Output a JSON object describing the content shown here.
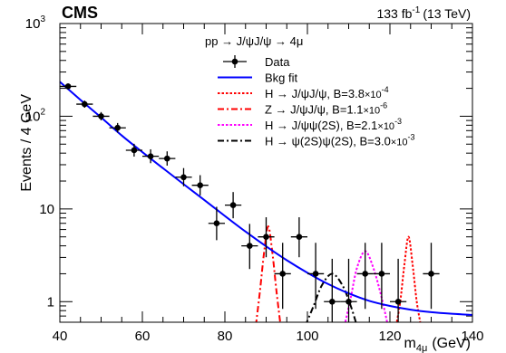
{
  "header": {
    "experiment": "CMS",
    "lumi": "133 fb",
    "lumi_exp": "-1",
    "energy": "(13 TeV)"
  },
  "chart_data": {
    "type": "line",
    "xlabel": "m",
    "xlabel_sub": "4μ",
    "xlabel_unit": "(GeV)",
    "ylabel": "Events / 4 GeV",
    "xlim": [
      40,
      140
    ],
    "ylim": [
      0.6,
      1000
    ],
    "ylog": true,
    "x_ticks": [
      40,
      60,
      80,
      100,
      120,
      140
    ],
    "y_ticks": [
      {
        "value": 1,
        "label": "1"
      },
      {
        "value": 10,
        "label": "10"
      },
      {
        "value": 100,
        "label": "10",
        "exp": "2"
      },
      {
        "value": 1000,
        "label": "10",
        "exp": "3"
      }
    ],
    "legend_header": "pp → J/ψJ/ψ → 4μ",
    "legend": [
      {
        "label": "Data",
        "style": "data",
        "color": "#000000"
      },
      {
        "label": "Bkg fit",
        "style": "solid",
        "color": "#0000ff"
      },
      {
        "label": "H → J/ψJ/ψ, B=3.8",
        "exp_base": "×10",
        "exp": "-4",
        "style": "dotted",
        "color": "#ff0000"
      },
      {
        "label": "Z → J/ψJ/ψ, B=1.1",
        "exp_base": "×10",
        "exp": "-6",
        "style": "dashdot",
        "color": "#ff0000"
      },
      {
        "label": "H → J/ψψ(2S), B=2.1",
        "exp_base": "×10",
        "exp": "-3",
        "style": "dotted",
        "color": "#ff00ff"
      },
      {
        "label": "H → ψ(2S)ψ(2S), B=3.0",
        "exp_base": "×10",
        "exp": "-3",
        "style": "dashdot",
        "color": "#000000"
      }
    ],
    "data": {
      "name": "Data",
      "x": [
        42,
        46,
        50,
        54,
        58,
        62,
        66,
        70,
        74,
        78,
        82,
        86,
        90,
        94,
        98,
        102,
        106,
        110,
        114,
        118,
        122,
        130
      ],
      "y": [
        210,
        135,
        100,
        75,
        43,
        37,
        35,
        22,
        18,
        7,
        11,
        4,
        5,
        2,
        5,
        2,
        1,
        1,
        2,
        2,
        1,
        2
      ]
    },
    "bkg_fit": {
      "name": "Bkg fit",
      "x": [
        40,
        45,
        50,
        55,
        60,
        65,
        70,
        75,
        80,
        85,
        90,
        95,
        100,
        105,
        110,
        115,
        120,
        125,
        130,
        135,
        140
      ],
      "y": [
        235,
        150,
        97,
        62,
        41,
        27.5,
        18.5,
        12.5,
        8.4,
        5.7,
        3.95,
        2.8,
        2.05,
        1.55,
        1.23,
        1.02,
        0.9,
        0.82,
        0.77,
        0.74,
        0.72
      ]
    },
    "signals": [
      {
        "name": "H → J/ψJ/ψ",
        "color": "#ff0000",
        "style": "dotted",
        "x": [
          121.5,
          122.5,
          123.5,
          124.5,
          125.5,
          126.5,
          127.5
        ],
        "y": [
          0.55,
          1.0,
          2.5,
          5.0,
          2.5,
          1.0,
          0.55
        ]
      },
      {
        "name": "Z → J/ψJ/ψ",
        "color": "#ff0000",
        "style": "dashdot",
        "x": [
          87.5,
          88.5,
          89.5,
          90.5,
          91.5,
          92.5,
          93.5
        ],
        "y": [
          0.55,
          1.3,
          3.4,
          6.5,
          3.4,
          1.3,
          0.55
        ]
      },
      {
        "name": "H → J/ψψ(2S)",
        "color": "#ff00ff",
        "style": "dotted",
        "x": [
          109,
          110.5,
          112,
          114,
          116,
          118,
          119.5
        ],
        "y": [
          0.55,
          1.1,
          2.3,
          3.5,
          2.3,
          1.1,
          0.55
        ]
      },
      {
        "name": "H → ψ(2S)ψ(2S)",
        "color": "#000000",
        "style": "dashdot",
        "x": [
          99.5,
          101.5,
          103.5,
          106,
          108.5,
          110.5,
          112
        ],
        "y": [
          0.55,
          0.9,
          1.5,
          2.0,
          1.5,
          0.9,
          0.55
        ]
      }
    ]
  }
}
